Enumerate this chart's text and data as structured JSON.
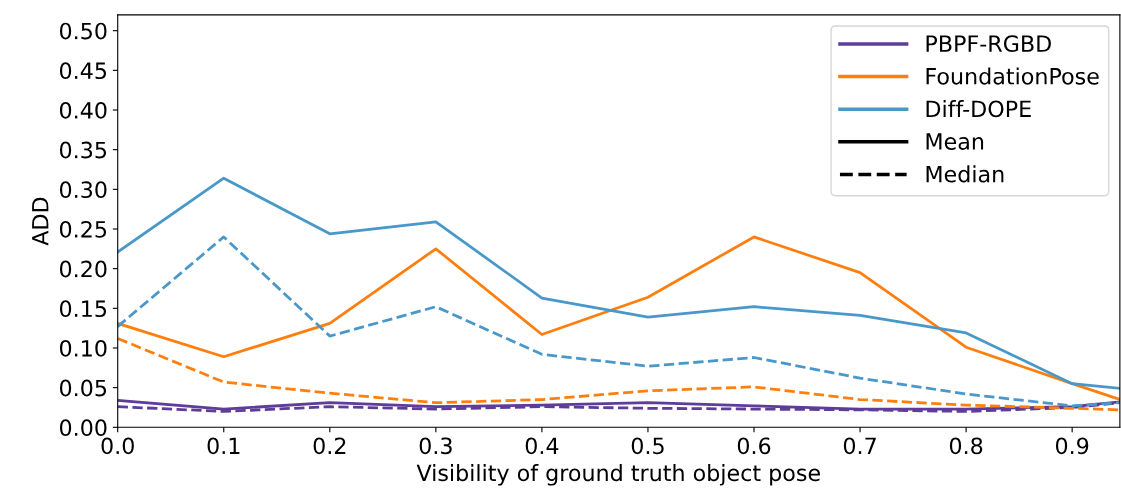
{
  "chart_data": {
    "type": "line",
    "xlabel": "Visibility of ground truth object pose",
    "ylabel": "ADD",
    "x": [
      0.0,
      0.1,
      0.2,
      0.3,
      0.4,
      0.5,
      0.6,
      0.7,
      0.8,
      0.9,
      0.945
    ],
    "series": [
      {
        "name": "PBPF-RGBD",
        "color": "#5e3c99",
        "line_style": "solid",
        "values": [
          0.034,
          0.023,
          0.031,
          0.026,
          0.028,
          0.031,
          0.027,
          0.023,
          0.023,
          0.026,
          0.032
        ]
      },
      {
        "name": "FoundationPose",
        "color": "#ff7f0e",
        "line_style": "solid",
        "values": [
          0.131,
          0.089,
          0.131,
          0.225,
          0.117,
          0.164,
          0.24,
          0.195,
          0.101,
          0.055,
          0.035
        ]
      },
      {
        "name": "Diff-DOPE",
        "color": "#4a98c9",
        "line_style": "solid",
        "values": [
          0.221,
          0.314,
          0.244,
          0.259,
          0.163,
          0.139,
          0.152,
          0.141,
          0.119,
          0.055,
          0.049
        ]
      },
      {
        "color": "#5e3c99",
        "line_style": "dashed",
        "values": [
          0.026,
          0.02,
          0.026,
          0.023,
          0.026,
          0.024,
          0.023,
          0.022,
          0.02,
          0.025,
          0.031
        ]
      },
      {
        "color": "#ff7f0e",
        "line_style": "dashed",
        "values": [
          0.112,
          0.057,
          0.043,
          0.031,
          0.035,
          0.046,
          0.051,
          0.035,
          0.028,
          0.024,
          0.022
        ]
      },
      {
        "color": "#4a98c9",
        "line_style": "dashed",
        "values": [
          0.127,
          0.24,
          0.115,
          0.152,
          0.092,
          0.077,
          0.088,
          0.062,
          0.042,
          0.027,
          0.031
        ]
      }
    ],
    "annotations": [
      "Mean",
      "Median"
    ],
    "xlim": [
      0.0,
      0.945
    ],
    "ylim": [
      0.0,
      0.52
    ],
    "xticks": [
      {
        "value": 0.0,
        "label": "0.0"
      },
      0.1,
      0.2,
      0.3,
      0.4,
      0.5,
      0.6,
      0.7,
      0.8,
      0.9
    ],
    "yticks": [
      {
        "value": 0.0,
        "label": "0.00"
      },
      {
        "value": 0.05,
        "label": "0.05"
      },
      {
        "value": 0.1,
        "label": "0.10"
      },
      {
        "value": 0.15,
        "label": "0.15"
      },
      {
        "value": 0.2,
        "label": "0.20"
      },
      {
        "value": 0.25,
        "label": "0.25"
      },
      {
        "value": 0.3,
        "label": "0.30"
      },
      {
        "value": 0.35,
        "label": "0.35"
      },
      {
        "value": 0.4,
        "label": "0.40"
      },
      {
        "value": 0.45,
        "label": "0.45"
      },
      {
        "value": 0.5,
        "label": "0.50"
      }
    ],
    "grid": false,
    "legend": "top right"
  }
}
